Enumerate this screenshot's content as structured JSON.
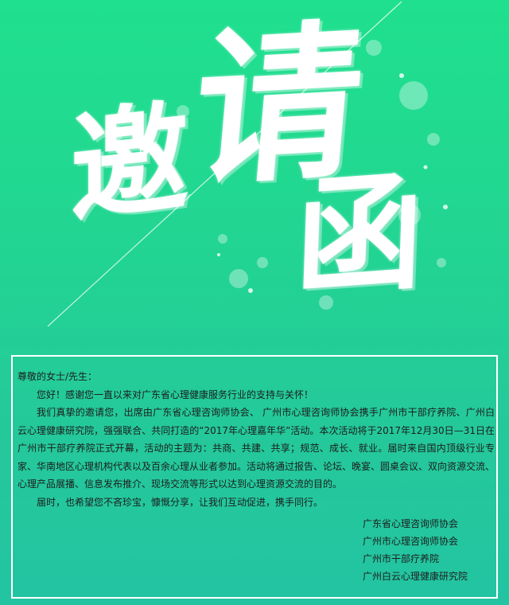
{
  "hero": {
    "char1": "邀",
    "char2": "请",
    "char3": "函"
  },
  "letter": {
    "salutation": "尊敬的女士/先生：",
    "paragraphs": [
      "您好！感谢您一直以来对广东省心理健康服务行业的支持与关怀！",
      "我们真挚的邀请您，出席由广东省心理咨询师协会、 广州市心理咨询师协会携手广州市干部疗养院、广州白云心理健康研究院，强强联合、共同打造的“2017年心理嘉年华”活动。本次活动将于2017年12月30日—31日在广州市干部疗养院正式开幕，活动的主题为：共商、共建、共享；规范、成长、就业。届时来自国内顶级行业专家、华南地区心理机构代表以及百余心理从业者参加。活动将通过报告、论坛、晚宴、圆桌会议、双向资源交流、心理产品展播、信息发布推介、现场交流等形式以达到心理资源交流的目的。",
      "届时，也希望您不吝珍宝，慷慨分享，让我们互动促进，携手同行。"
    ],
    "signatories": [
      "广东省心理咨询师协会",
      "广州市心理咨询师协会",
      "广州市干部疗养院",
      "广州白云心理健康研究院"
    ]
  }
}
